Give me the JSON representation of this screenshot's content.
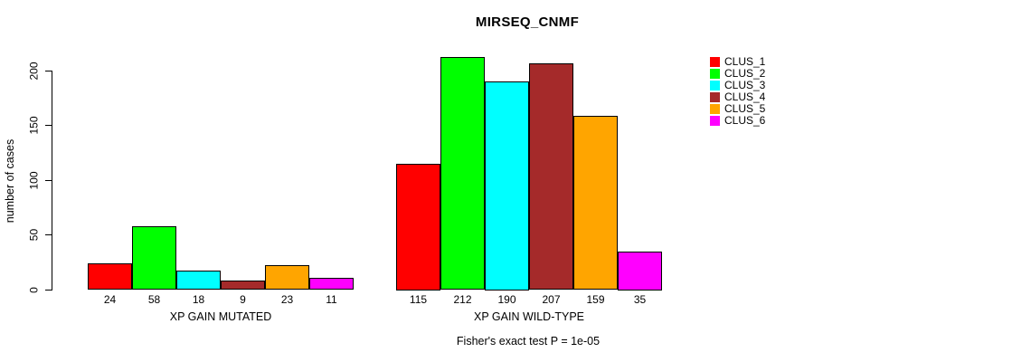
{
  "chart_data": {
    "type": "bar",
    "title": "MIRSEQ_CNMF",
    "ylabel": "number of cases",
    "xlabel": "",
    "ylim": [
      0,
      200
    ],
    "yticks": [
      0,
      50,
      100,
      150,
      200
    ],
    "grid": false,
    "legend_position": "right",
    "categories": [
      "XP GAIN MUTATED",
      "XP GAIN WILD-TYPE"
    ],
    "series": [
      {
        "name": "CLUS_1",
        "color": "#FF0000",
        "values": [
          24,
          115
        ]
      },
      {
        "name": "CLUS_2",
        "color": "#00FF00",
        "values": [
          58,
          212
        ]
      },
      {
        "name": "CLUS_3",
        "color": "#00FFFF",
        "values": [
          18,
          190
        ]
      },
      {
        "name": "CLUS_4",
        "color": "#A52A2A",
        "values": [
          9,
          207
        ]
      },
      {
        "name": "CLUS_5",
        "color": "#FFA500",
        "values": [
          23,
          159
        ]
      },
      {
        "name": "CLUS_6",
        "color": "#FF00FF",
        "values": [
          11,
          35
        ]
      }
    ],
    "bar_value_labels": [
      [
        24,
        58,
        18,
        9,
        23,
        11
      ],
      [
        115,
        212,
        190,
        207,
        159,
        35
      ]
    ],
    "annotation": "Fisher's exact test P = 1e-05",
    "text_color": "#000000",
    "axis_color": "#000000",
    "background_color": "#FFFFFF"
  }
}
